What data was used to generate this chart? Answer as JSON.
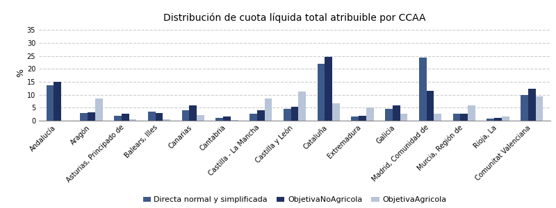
{
  "title": "Distribución de cuota líquida total atribuible por CCAA",
  "categories": [
    "Andalucía",
    "Aragón",
    "Asturias, Principado de",
    "Balears, Illes",
    "Canarias",
    "Cantabria",
    "Castilla - La Mancha",
    "Castilla y León",
    "Cataluña",
    "Extremadura",
    "Galicia",
    "Madrid, Comunidad de",
    "Murcia, Región de",
    "Rioja, La",
    "Comunitat Valenciana"
  ],
  "series": {
    "Directa normal y simplificada": [
      13.8,
      3.0,
      2.0,
      3.5,
      4.0,
      1.2,
      2.8,
      4.5,
      22.0,
      1.5,
      4.5,
      24.3,
      2.6,
      0.8,
      10.0
    ],
    "ObjetivaNoAgricola": [
      15.0,
      3.1,
      2.8,
      3.0,
      5.9,
      1.5,
      3.9,
      5.3,
      24.7,
      1.8,
      6.0,
      11.5,
      2.7,
      1.0,
      12.2
    ],
    "ObjetivaAgricola": [
      0.0,
      8.6,
      0.5,
      0.5,
      2.2,
      0.4,
      8.7,
      11.2,
      6.7,
      5.0,
      2.7,
      2.7,
      5.8,
      1.5,
      9.5
    ]
  },
  "colors": {
    "Directa normal y simplificada": "#3d5a8a",
    "ObjetivaNoAgricola": "#1f3060",
    "ObjetivaAgricola": "#b8c4d8"
  },
  "ylabel": "%",
  "ylim": [
    0,
    37
  ],
  "yticks": [
    0,
    5,
    10,
    15,
    20,
    25,
    30,
    35
  ],
  "background_color": "#ffffff",
  "grid_color": "#cccccc",
  "bar_width": 0.22,
  "title_fontsize": 10,
  "tick_fontsize": 7,
  "ylabel_fontsize": 9,
  "legend_fontsize": 8
}
